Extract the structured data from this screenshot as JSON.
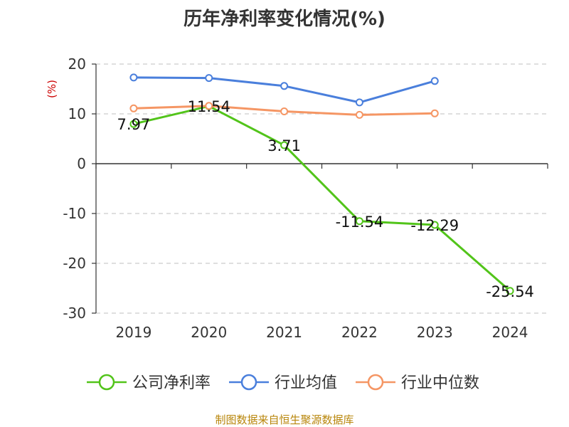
{
  "title": "历年净利率变化情况(%)",
  "source": "制图数据来自恒生聚源数据库",
  "chart_data": {
    "type": "line",
    "title": "历年净利率变化情况(%)",
    "ylabel": "(%)",
    "xlabel": "",
    "categories": [
      "2019",
      "2020",
      "2021",
      "2022",
      "2023",
      "2024"
    ],
    "ylim": [
      -30,
      20
    ],
    "yticks": [
      "20",
      "10",
      "0",
      "-10",
      "-20",
      "-30"
    ],
    "grid": true,
    "legend_position": "bottom",
    "series": [
      {
        "name": "公司净利率",
        "color": "#52c41a",
        "values": [
          7.97,
          11.54,
          3.71,
          -11.54,
          -12.29,
          -25.54
        ],
        "labels": [
          "7.97",
          "11.54",
          "3.71",
          "-11.54",
          "-12.29",
          "-25.54"
        ]
      },
      {
        "name": "行业均值",
        "color": "#4a7fdc",
        "values": [
          17.3,
          17.2,
          15.6,
          12.3,
          16.6,
          null
        ],
        "labels": null
      },
      {
        "name": "行业中位数",
        "color": "#f59664",
        "values": [
          11.1,
          11.6,
          10.5,
          9.8,
          10.1,
          null
        ],
        "labels": null
      }
    ]
  }
}
